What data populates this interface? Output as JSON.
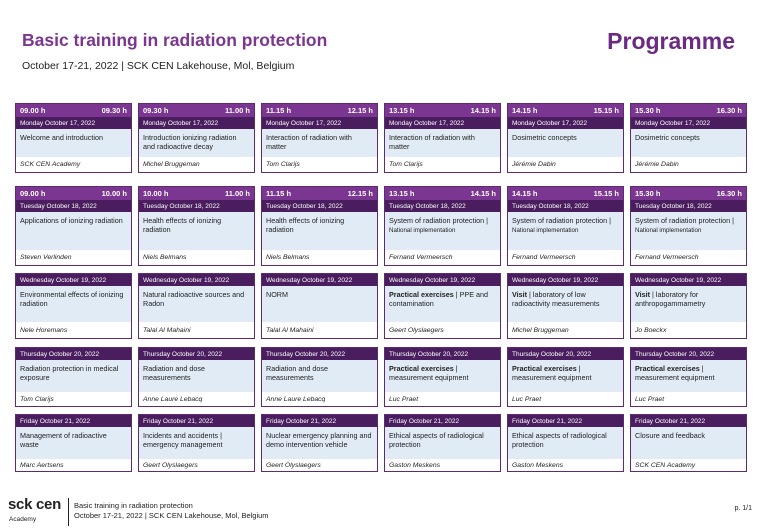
{
  "header": {
    "title": "Basic training in radiation protection",
    "subtitle": "October 17-21, 2022 | SCK CEN Lakehouse, Mol, Belgium",
    "programme": "Programme"
  },
  "rows": [
    {
      "sessions": [
        {
          "start": "09.00 h",
          "end": "09.30 h",
          "day": "Monday October 17, 2022",
          "topic": "Welcome and introduction",
          "note": "",
          "speaker": "SCK CEN Academy"
        },
        {
          "start": "09.30 h",
          "end": "11.00 h",
          "day": "Monday October 17, 2022",
          "topic": "Introduction ionizing radiation and radioactive decay",
          "note": "",
          "speaker": "Michel Bruggeman"
        },
        {
          "start": "11.15 h",
          "end": "12.15 h",
          "day": "Monday October 17, 2022",
          "topic": "Interaction of radiation with matter",
          "note": "",
          "speaker": "Tom Clarijs"
        },
        {
          "start": "13.15 h",
          "end": "14.15 h",
          "day": "Monday October 17, 2022",
          "topic": "Interaction of radiation with matter",
          "note": "",
          "speaker": "Tom Clarijs"
        },
        {
          "start": "14.15 h",
          "end": "15.15 h",
          "day": "Monday October 17, 2022",
          "topic": "Dosimetric concepts",
          "note": "",
          "speaker": "Jérémie Dabin"
        },
        {
          "start": "15.30 h",
          "end": "16.30 h",
          "day": "Monday October 17, 2022",
          "topic": "Dosimetric concepts",
          "note": "",
          "speaker": "Jérémie Dabin"
        }
      ]
    },
    {
      "sessions": [
        {
          "start": "09.00 h",
          "end": "10.00 h",
          "day": "Tuesday October 18, 2022",
          "topic": "Applications of ionizing radiation",
          "note": "",
          "speaker": "Steven Verlinden"
        },
        {
          "start": "10.00 h",
          "end": "11.00 h",
          "day": "Tuesday October 18, 2022",
          "topic": "Health effects of ionizing radiation",
          "note": "",
          "speaker": "Niels Belmans"
        },
        {
          "start": "11.15 h",
          "end": "12.15 h",
          "day": "Tuesday October 18, 2022",
          "topic": "Health effects of ionizing radiation",
          "note": "",
          "speaker": "Niels Belmans"
        },
        {
          "start": "13.15 h",
          "end": "14.15 h",
          "day": "Tuesday October 18, 2022",
          "topic": "System of radiation protection |",
          "note": "National implementation",
          "speaker": "Fernand Vermeersch"
        },
        {
          "start": "14.15 h",
          "end": "15.15 h",
          "day": "Tuesday October 18, 2022",
          "topic": "System of radiation protection |",
          "note": "National implementation",
          "speaker": "Fernand Vermeersch"
        },
        {
          "start": "15.30 h",
          "end": "16.30 h",
          "day": "Tuesday October 18, 2022",
          "topic": "System of radiation protection |",
          "note": "National implementation",
          "speaker": "Fernand Vermeersch"
        }
      ]
    },
    {
      "sessions": [
        {
          "day": "Wednesday October 19, 2022",
          "bold": "",
          "topic": "Environmental effects of ionizing radiation",
          "speaker": "Nele Horemans"
        },
        {
          "day": "Wednesday October 19, 2022",
          "bold": "",
          "topic": "Natural radioactive sources and Radon",
          "speaker": "Talal Al Mahaini"
        },
        {
          "day": "Wednesday October 19, 2022",
          "bold": "",
          "topic": "NORM",
          "speaker": "Talal Al Mahaini"
        },
        {
          "day": "Wednesday October 19, 2022",
          "bold": "Practical exercises",
          "topic": " | PPE and contamination",
          "speaker": "Geert Olyslaegers"
        },
        {
          "day": "Wednesday October 19, 2022",
          "bold": "Visit",
          "topic": " | laboratory of low radioactivity measurements",
          "speaker": "Michel Bruggeman"
        },
        {
          "day": "Wednesday October 19, 2022",
          "bold": "Visit",
          "topic": " | laboratory for anthropogammametry",
          "speaker": "Jo Boeckx"
        }
      ]
    },
    {
      "sessions": [
        {
          "day": "Thursday October 20, 2022",
          "bold": "",
          "topic": "Radiation protection in medical exposure",
          "speaker": "Tom Clarijs"
        },
        {
          "day": "Thursday October 20, 2022",
          "bold": "",
          "topic": "Radiation and dose measurements",
          "speaker": "Anne Laure Lebacq"
        },
        {
          "day": "Thursday October 20, 2022",
          "bold": "",
          "topic": "Radiation and dose measurements",
          "speaker": "Anne Laure Lebacq"
        },
        {
          "day": "Thursday October 20, 2022",
          "bold": "Practical exercises",
          "topic": " | measurement equipment",
          "speaker": "Luc Praet"
        },
        {
          "day": "Thursday October 20, 2022",
          "bold": "Practical exercises",
          "topic": " | measurement equipment",
          "speaker": "Luc Praet"
        },
        {
          "day": "Thursday October 20, 2022",
          "bold": "Practical exercises",
          "topic": " | measurement equipment",
          "speaker": "Luc Praet"
        }
      ]
    },
    {
      "sessions": [
        {
          "day": "Friday October 21, 2022",
          "bold": "",
          "topic": "Management of radioactive waste",
          "speaker": "Marc Aertsens"
        },
        {
          "day": "Friday October 21, 2022",
          "bold": "",
          "topic": "Incidents and accidents | emergency management",
          "speaker": "Geert Olyslaegers"
        },
        {
          "day": "Friday October 21, 2022",
          "bold": "",
          "topic": "Nuclear emergency planning and demo intervention vehicle",
          "speaker": "Geert Olyslaegers"
        },
        {
          "day": "Friday October 21, 2022",
          "bold": "",
          "topic": "Ethical aspects of radiological protection",
          "speaker": "Gaston Meskens"
        },
        {
          "day": "Friday October 21, 2022",
          "bold": "",
          "topic": "Ethical aspects of radiological protection",
          "speaker": "Gaston Meskens"
        },
        {
          "day": "Friday October 21, 2022",
          "bold": "",
          "topic": "Closure and feedback",
          "speaker": "SCK CEN Academy"
        }
      ]
    }
  ],
  "footer": {
    "logo": "sck cen",
    "logo_sub": "Academy",
    "line1": "Basic training in radiation protection",
    "line2": "October 17-21, 2022 | SCK CEN Lakehouse, Mol, Belgium",
    "page": "p. 1/1"
  },
  "colors": {
    "title": "#7a3690",
    "header_bar": "#7a3690",
    "day_bar": "#4a1e5e",
    "topic_bg": "#e0ebf6"
  }
}
